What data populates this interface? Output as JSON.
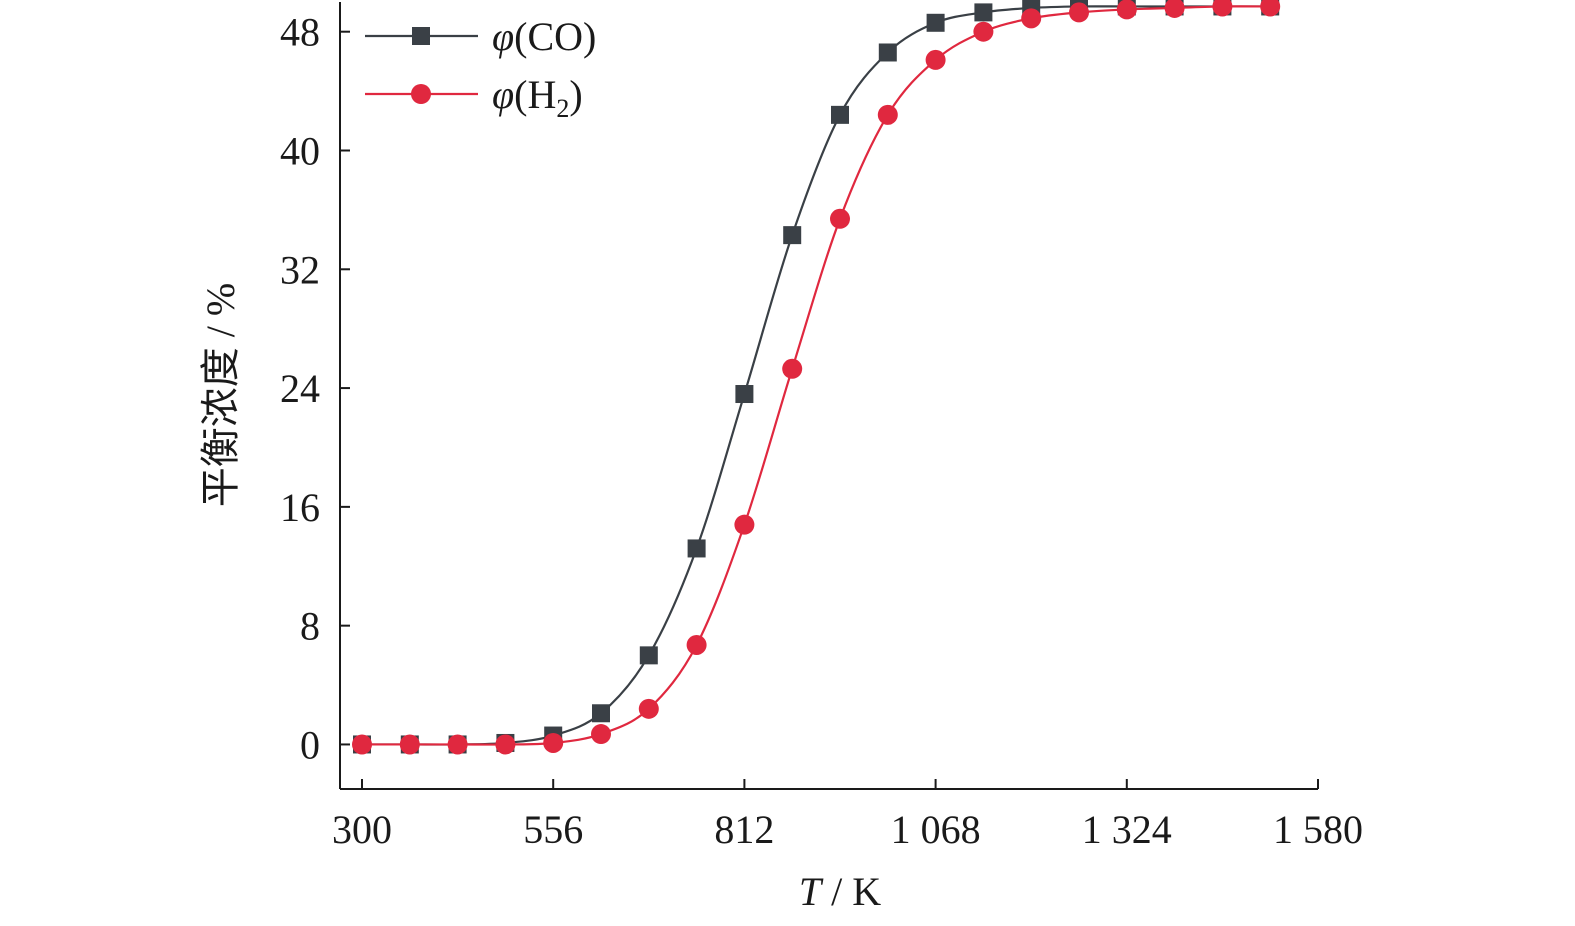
{
  "chart_data": {
    "type": "line",
    "xlabel_var": "T",
    "xlabel_unit": " / K",
    "ylabel": "平衡浓度 / %",
    "xlim": [
      300,
      1580
    ],
    "ylim": [
      -3,
      50
    ],
    "xticks": [
      300,
      556,
      812,
      1068,
      1324,
      1580
    ],
    "xtick_labels": [
      "300",
      "556",
      "812",
      "1 068",
      "1 324",
      "1 580"
    ],
    "yticks": [
      0,
      8,
      16,
      24,
      32,
      40,
      48
    ],
    "ytick_labels": [
      "0",
      "8",
      "16",
      "24",
      "32",
      "40",
      "48"
    ],
    "grid": false,
    "legend_position": "top-left",
    "x": [
      300,
      364,
      428,
      492,
      556,
      620,
      684,
      748,
      812,
      876,
      940,
      1004,
      1068,
      1132,
      1196,
      1260,
      1324,
      1388,
      1452,
      1516
    ],
    "series": [
      {
        "name": "φ(CO)",
        "legend_base": "φ",
        "legend_label": "(CO)",
        "legend_sub": "",
        "legend_end": "",
        "color": "#3a4046",
        "marker": "square",
        "values": [
          0,
          0,
          0,
          0.1,
          0.6,
          2.1,
          6.0,
          13.2,
          23.6,
          34.3,
          42.4,
          46.6,
          48.6,
          49.3,
          49.6,
          49.7,
          49.7,
          49.7,
          49.7,
          49.7
        ]
      },
      {
        "name": "φ(H2)",
        "legend_base": "φ",
        "legend_label": "(H",
        "legend_sub": "2",
        "legend_end": ")",
        "color": "#e0283f",
        "marker": "circle",
        "values": [
          0,
          0,
          0,
          0,
          0.1,
          0.7,
          2.4,
          6.7,
          14.8,
          25.3,
          35.4,
          42.4,
          46.1,
          48.0,
          48.9,
          49.3,
          49.5,
          49.6,
          49.7,
          49.7
        ]
      }
    ]
  }
}
